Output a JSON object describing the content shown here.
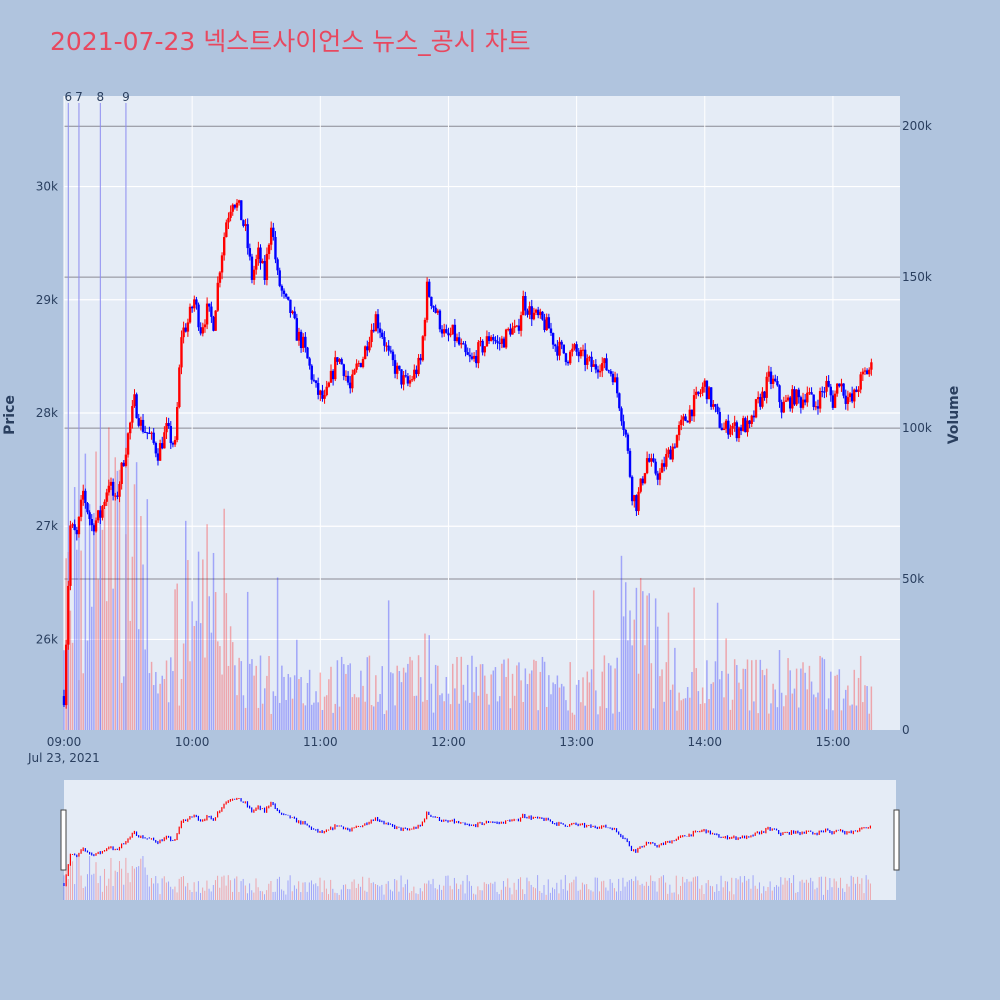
{
  "title": "2021-07-23 넥스트사이언스 뉴스_공시 차트",
  "colors": {
    "background": "#b0c4de",
    "plot_bg": "#e5ecf6",
    "up": "#ff0000",
    "down": "#0000ff",
    "title": "#e8485f",
    "news_line": "#8c8cf0"
  },
  "chart_data": {
    "type": "candlestick",
    "date_label": "Jul 23, 2021",
    "ylabel": "Price",
    "y2label": "Volume",
    "ylim": [
      25200,
      30800
    ],
    "y2lim": [
      0,
      210000
    ],
    "xlim": [
      "09:00",
      "15:30"
    ],
    "x_ticks": [
      "09:00",
      "10:00",
      "11:00",
      "12:00",
      "13:00",
      "14:00",
      "15:00"
    ],
    "y_ticks": [
      "26k",
      "27k",
      "28k",
      "29k",
      "30k"
    ],
    "y2_ticks": [
      "0",
      "50k",
      "100k",
      "150k",
      "200k"
    ],
    "news_markers": [
      {
        "label": "6",
        "time": "09:02"
      },
      {
        "label": "7",
        "time": "09:07"
      },
      {
        "label": "8",
        "time": "09:17"
      },
      {
        "label": "9",
        "time": "09:29"
      }
    ],
    "price_path": [
      [
        "09:00",
        25500
      ],
      [
        "09:03",
        27000
      ],
      [
        "09:06",
        26900
      ],
      [
        "09:09",
        27300
      ],
      [
        "09:13",
        27000
      ],
      [
        "09:17",
        27100
      ],
      [
        "09:21",
        27400
      ],
      [
        "09:24",
        27200
      ],
      [
        "09:27",
        27500
      ],
      [
        "09:30",
        27800
      ],
      [
        "09:33",
        28100
      ],
      [
        "09:36",
        27900
      ],
      [
        "09:40",
        27800
      ],
      [
        "09:44",
        27650
      ],
      [
        "09:48",
        27850
      ],
      [
        "09:52",
        27700
      ],
      [
        "09:55",
        28700
      ],
      [
        "09:58",
        28800
      ],
      [
        "10:01",
        29000
      ],
      [
        "10:04",
        28750
      ],
      [
        "10:07",
        28900
      ],
      [
        "10:10",
        28800
      ],
      [
        "10:13",
        29300
      ],
      [
        "10:16",
        29700
      ],
      [
        "10:19",
        29900
      ],
      [
        "10:22",
        29800
      ],
      [
        "10:25",
        29600
      ],
      [
        "10:28",
        29200
      ],
      [
        "10:31",
        29400
      ],
      [
        "10:34",
        29200
      ],
      [
        "10:37",
        29700
      ],
      [
        "10:40",
        29200
      ],
      [
        "10:43",
        29000
      ],
      [
        "10:46",
        28900
      ],
      [
        "10:49",
        28700
      ],
      [
        "10:52",
        28600
      ],
      [
        "10:55",
        28400
      ],
      [
        "10:58",
        28200
      ],
      [
        "11:02",
        28100
      ],
      [
        "11:05",
        28300
      ],
      [
        "11:08",
        28500
      ],
      [
        "11:11",
        28400
      ],
      [
        "11:14",
        28200
      ],
      [
        "11:17",
        28400
      ],
      [
        "11:20",
        28500
      ],
      [
        "11:23",
        28700
      ],
      [
        "11:26",
        28850
      ],
      [
        "11:29",
        28700
      ],
      [
        "11:32",
        28500
      ],
      [
        "11:35",
        28400
      ],
      [
        "11:38",
        28300
      ],
      [
        "11:41",
        28250
      ],
      [
        "11:44",
        28350
      ],
      [
        "11:47",
        28450
      ],
      [
        "11:50",
        29100
      ],
      [
        "11:53",
        28950
      ],
      [
        "11:56",
        28800
      ],
      [
        "11:59",
        28650
      ],
      [
        "12:02",
        28700
      ],
      [
        "12:05",
        28600
      ],
      [
        "12:08",
        28500
      ],
      [
        "12:11",
        28450
      ],
      [
        "12:14",
        28550
      ],
      [
        "12:17",
        28600
      ],
      [
        "12:20",
        28700
      ],
      [
        "12:23",
        28600
      ],
      [
        "12:26",
        28650
      ],
      [
        "12:29",
        28750
      ],
      [
        "12:32",
        28700
      ],
      [
        "12:35",
        29000
      ],
      [
        "12:38",
        28900
      ],
      [
        "12:41",
        28850
      ],
      [
        "12:44",
        28800
      ],
      [
        "12:47",
        28750
      ],
      [
        "12:50",
        28600
      ],
      [
        "12:53",
        28550
      ],
      [
        "12:56",
        28500
      ],
      [
        "12:59",
        28550
      ],
      [
        "13:02",
        28500
      ],
      [
        "13:05",
        28450
      ],
      [
        "13:08",
        28400
      ],
      [
        "13:11",
        28450
      ],
      [
        "13:14",
        28400
      ],
      [
        "13:17",
        28350
      ],
      [
        "13:20",
        28100
      ],
      [
        "13:23",
        27800
      ],
      [
        "13:26",
        27300
      ],
      [
        "13:28",
        27200
      ],
      [
        "13:30",
        27350
      ],
      [
        "13:33",
        27600
      ],
      [
        "13:36",
        27500
      ],
      [
        "13:39",
        27450
      ],
      [
        "13:42",
        27600
      ],
      [
        "13:45",
        27700
      ],
      [
        "13:48",
        27850
      ],
      [
        "13:51",
        27950
      ],
      [
        "13:54",
        28050
      ],
      [
        "13:57",
        28150
      ],
      [
        "14:00",
        28250
      ],
      [
        "14:03",
        28100
      ],
      [
        "14:06",
        27950
      ],
      [
        "14:09",
        27850
      ],
      [
        "14:12",
        27900
      ],
      [
        "14:15",
        27850
      ],
      [
        "14:18",
        27900
      ],
      [
        "14:21",
        27850
      ],
      [
        "14:24",
        28050
      ],
      [
        "14:27",
        28150
      ],
      [
        "14:30",
        28300
      ],
      [
        "14:33",
        28250
      ],
      [
        "14:36",
        28050
      ],
      [
        "14:39",
        28100
      ],
      [
        "14:42",
        28150
      ],
      [
        "14:45",
        28100
      ],
      [
        "14:48",
        28200
      ],
      [
        "14:51",
        28050
      ],
      [
        "14:54",
        28150
      ],
      [
        "14:57",
        28250
      ],
      [
        "15:00",
        28100
      ],
      [
        "15:03",
        28300
      ],
      [
        "15:06",
        28150
      ],
      [
        "15:09",
        28100
      ],
      [
        "15:12",
        28250
      ],
      [
        "15:15",
        28350
      ],
      [
        "15:18",
        28400
      ]
    ]
  }
}
